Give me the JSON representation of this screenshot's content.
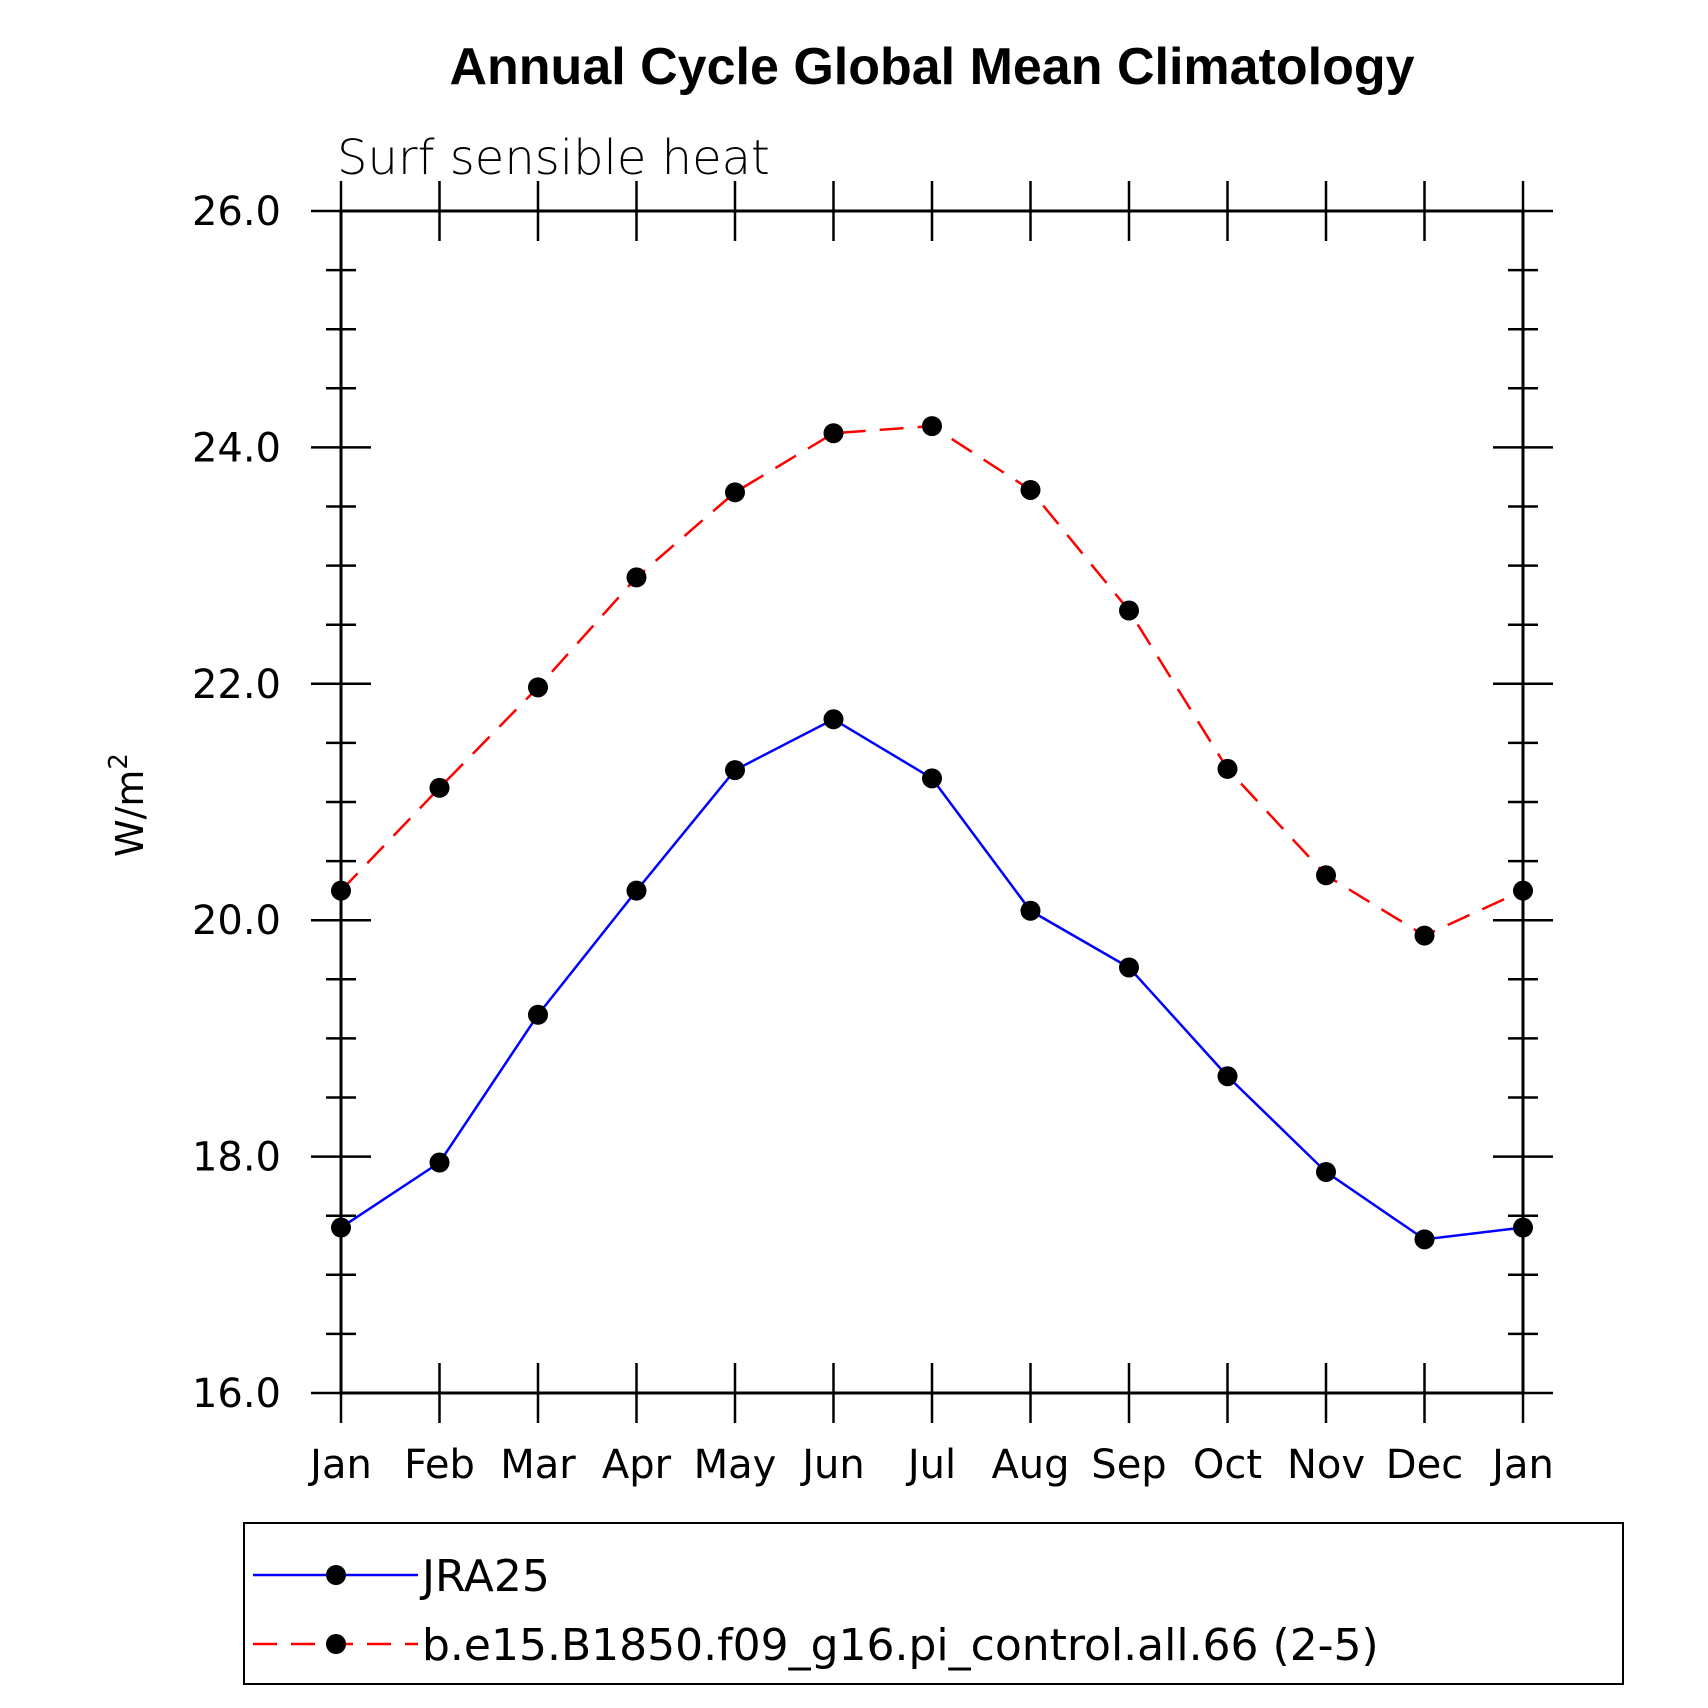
{
  "chart_data": {
    "type": "line",
    "title": "Annual Cycle Global Mean Climatology",
    "subtitle": "Surf sensible heat",
    "ylabel": "W/m",
    "ylabel_superscript": "2",
    "categories": [
      "Jan",
      "Feb",
      "Mar",
      "Apr",
      "May",
      "Jun",
      "Jul",
      "Aug",
      "Sep",
      "Oct",
      "Nov",
      "Dec",
      "Jan"
    ],
    "ylim": [
      16.0,
      26.0
    ],
    "ytick_labels": [
      "16.0",
      "18.0",
      "20.0",
      "22.0",
      "24.0",
      "26.0"
    ],
    "ytick_values": [
      16,
      18,
      20,
      22,
      24,
      26
    ],
    "series": [
      {
        "name": "JRA25",
        "color": "#0000ff",
        "line_style": "solid",
        "values": [
          17.4,
          17.95,
          19.2,
          20.25,
          21.27,
          21.7,
          21.2,
          20.08,
          19.6,
          18.68,
          17.87,
          17.3,
          17.4
        ]
      },
      {
        "name": "b.e15.B1850.f09_g16.pi_control.all.66 (2-5)",
        "color": "#ff0000",
        "line_style": "dashed",
        "values": [
          20.25,
          21.12,
          21.97,
          22.9,
          23.62,
          24.12,
          24.18,
          23.64,
          22.62,
          21.28,
          20.38,
          19.87,
          20.25
        ]
      }
    ],
    "marker_color": "#000000",
    "grid": false,
    "legend_position": "bottom"
  }
}
